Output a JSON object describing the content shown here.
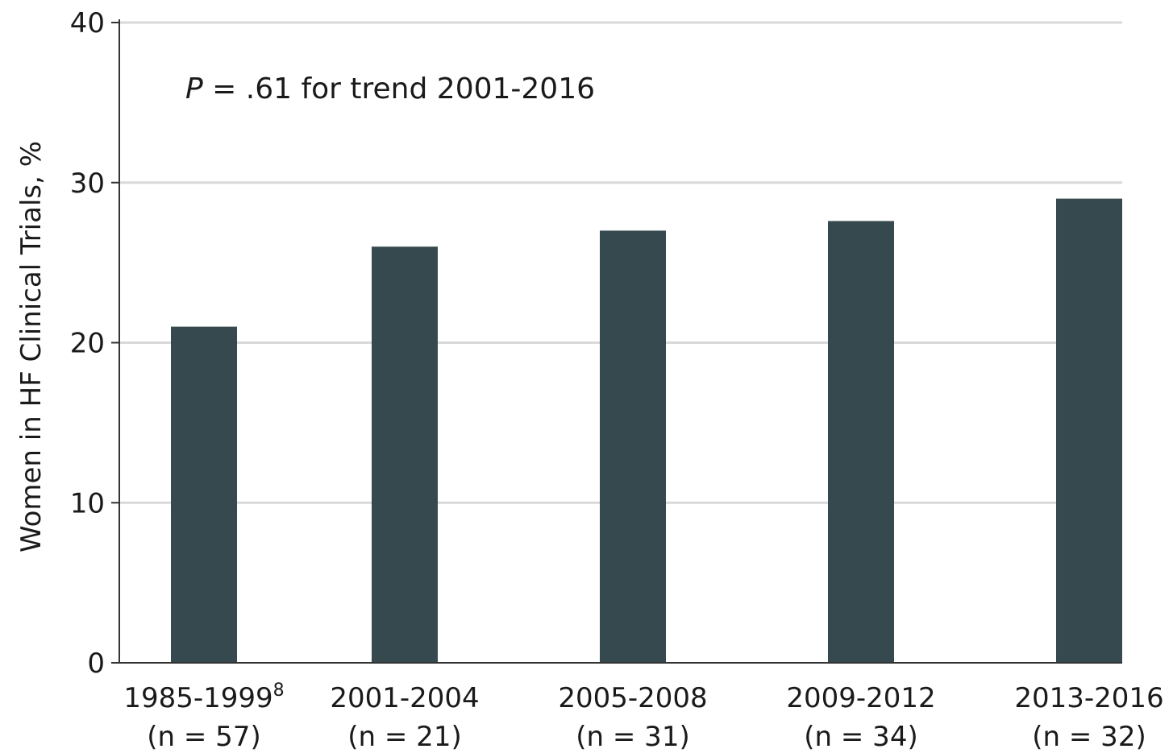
{
  "chart_data": {
    "type": "bar",
    "categories": [
      "1985-1999",
      "2001-2004",
      "2005-2008",
      "2009-2012",
      "2013-2016"
    ],
    "category_superscripts": [
      "8",
      "",
      "",
      "",
      ""
    ],
    "category_sublabels": [
      "(n = 57)",
      "(n = 21)",
      "(n = 31)",
      "(n = 34)",
      "(n = 32)"
    ],
    "values": [
      21,
      26,
      27,
      27.6,
      29
    ],
    "title": "",
    "xlabel": "",
    "ylabel": "Women in HF Clinical Trials, %",
    "ylim": [
      0,
      40
    ],
    "yticks": [
      "0",
      "10",
      "20",
      "30",
      "40"
    ],
    "grid": true,
    "annotation": {
      "p_symbol": "P",
      "text": " = .61 for trend 2001-2016"
    },
    "colors": {
      "bar": "#36494f",
      "grid": "#d9d9d9",
      "axis": "#333333"
    }
  }
}
